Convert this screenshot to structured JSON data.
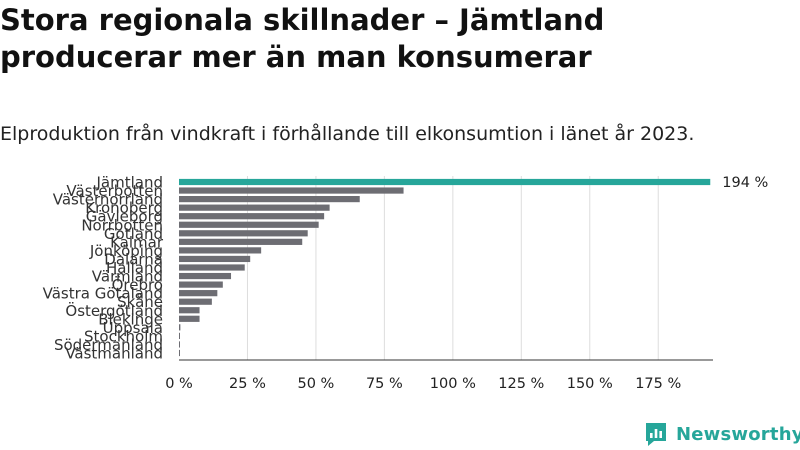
{
  "title": "Stora regionala skillnader – Jämtland producerar mer än man konsumerar",
  "subtitle": "Elproduktion från vindkraft i förhållande till elkonsumtion i länet år 2023.",
  "brand": {
    "name": "Newsworthy",
    "icon": "newsworthy-logo-icon",
    "color": "#26a69a"
  },
  "colors": {
    "highlight": "#26a69a",
    "bar": "#6d6d73",
    "grid": "#dddddd"
  },
  "chart_data": {
    "type": "bar",
    "orientation": "horizontal",
    "categories": [
      "Jämtland",
      "Västerbotten",
      "Västernorrland",
      "Kronoberg",
      "Gävleborg",
      "Norrbotten",
      "Gotland",
      "Kalmar",
      "Jönköping",
      "Dalarna",
      "Halland",
      "Värmland",
      "Örebro",
      "Västra Götaland",
      "Skåne",
      "Östergötland",
      "Blekinge",
      "Uppsala",
      "Stockholm",
      "Södermanland",
      "Västmanland"
    ],
    "values": [
      194,
      82,
      66,
      55,
      53,
      51,
      47,
      45,
      30,
      26,
      24,
      19,
      16,
      14,
      12,
      7.5,
      7.5,
      0.5,
      0.3,
      0.2,
      0.1
    ],
    "highlight_index": 0,
    "data_labels": [
      {
        "index": 0,
        "text": "194 %"
      }
    ],
    "xlim": [
      0,
      195
    ],
    "xticks": [
      0,
      25,
      50,
      75,
      100,
      125,
      150,
      175
    ],
    "xtick_labels": [
      "0 %",
      "25 %",
      "50 %",
      "75 %",
      "100 %",
      "125 %",
      "150 %",
      "175 %"
    ],
    "unit": "%",
    "grid": true,
    "legend": "none"
  }
}
